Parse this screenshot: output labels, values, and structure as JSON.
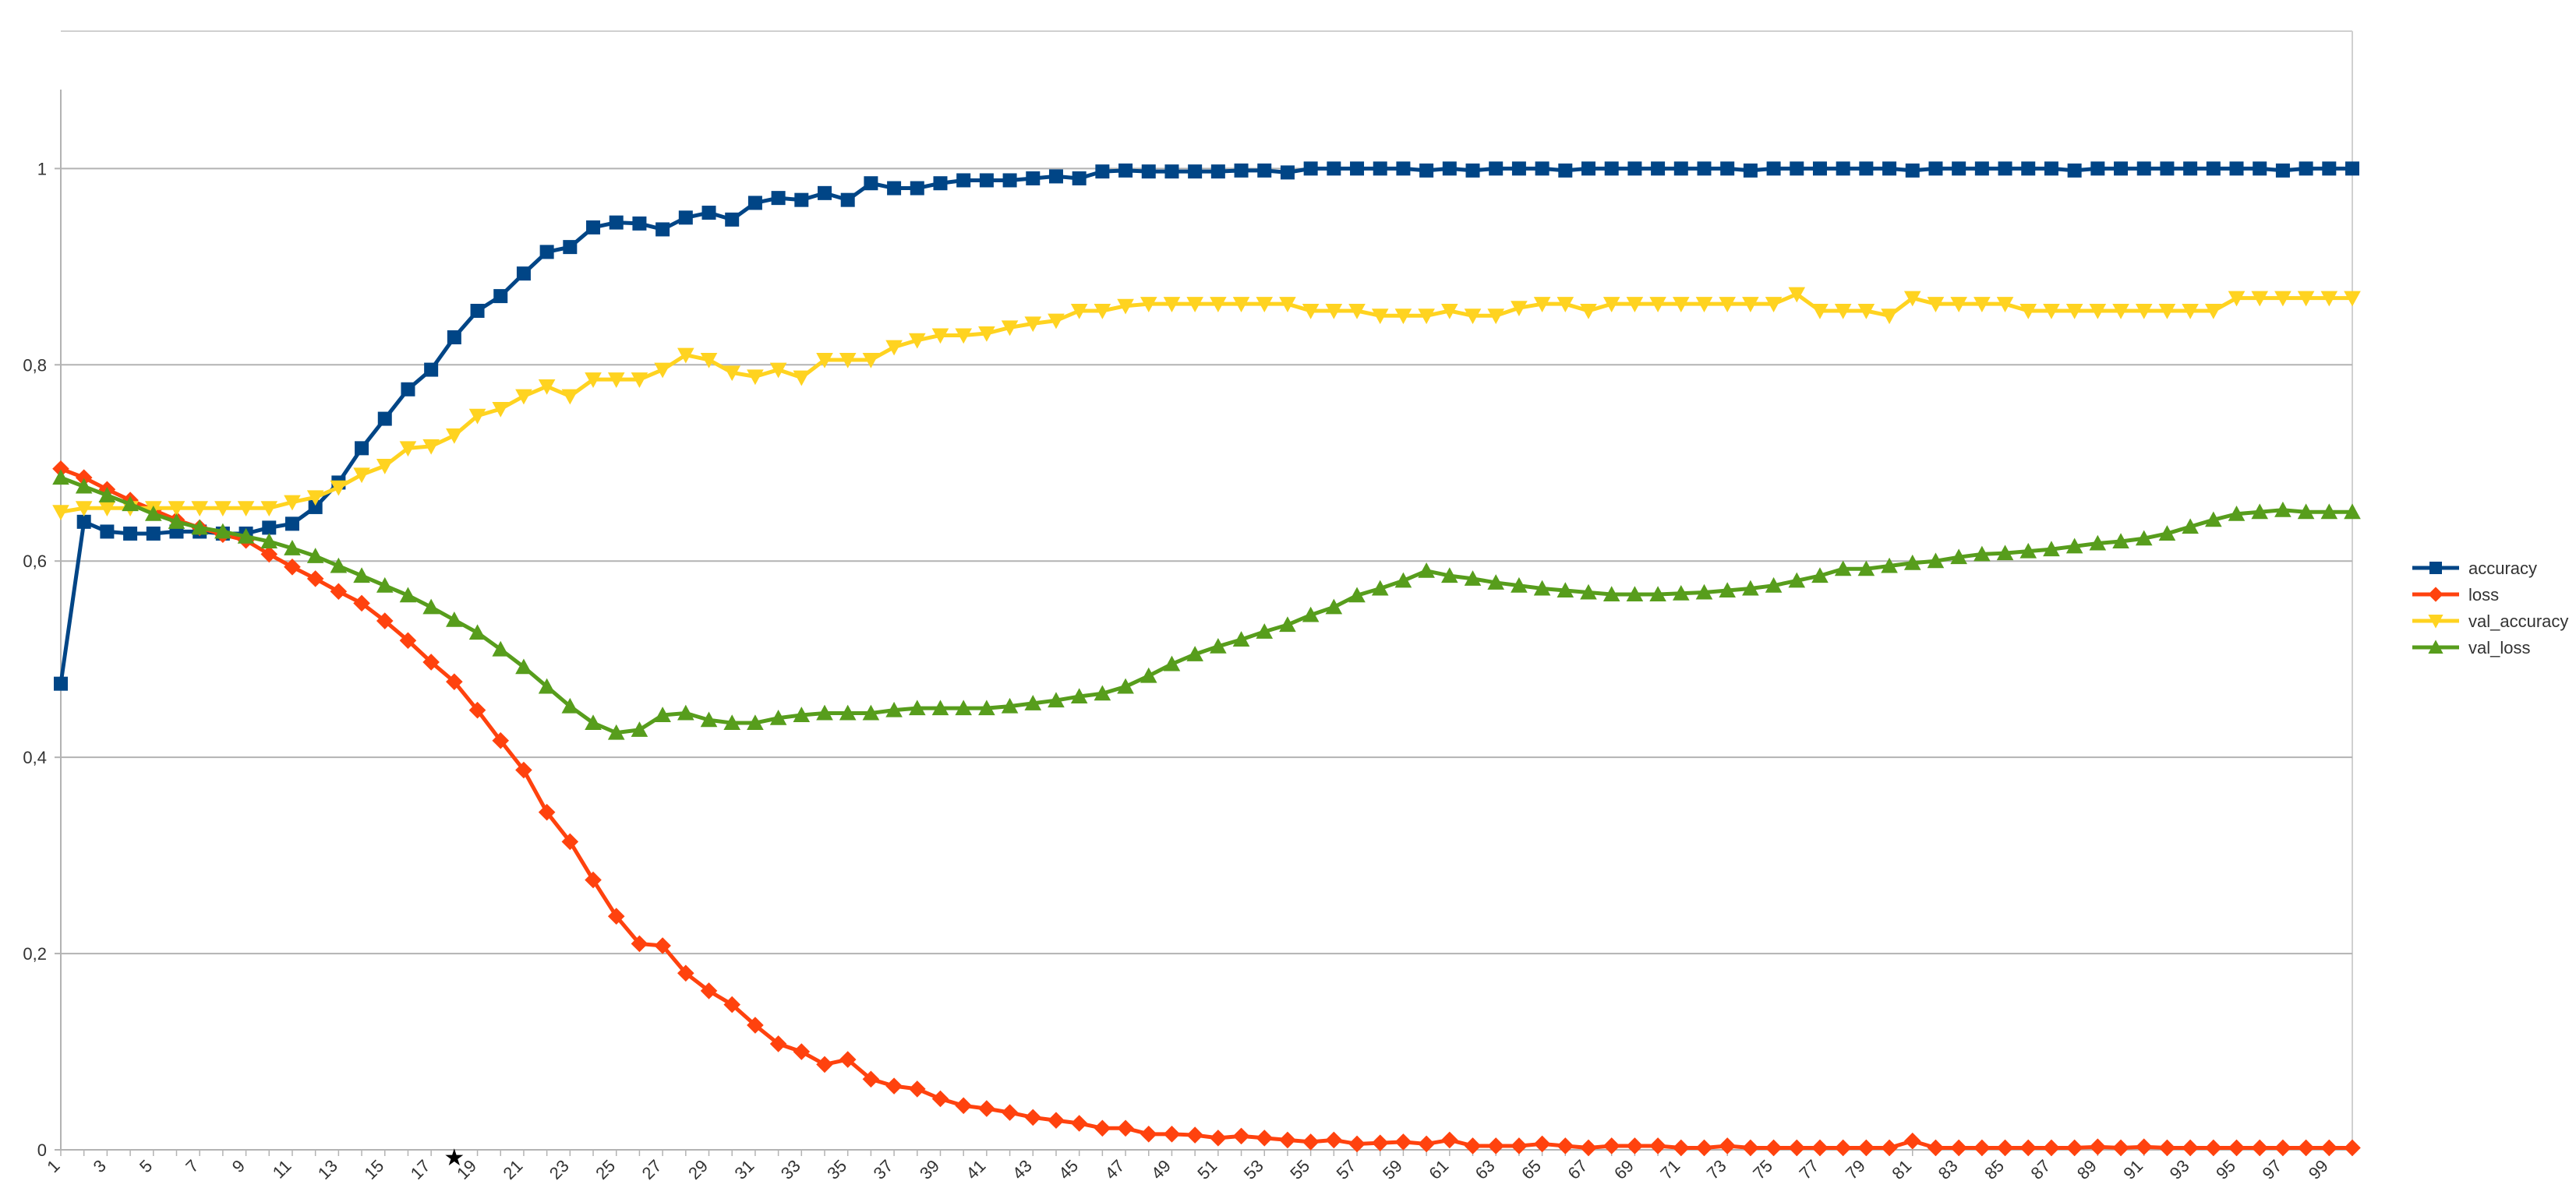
{
  "chart_data": {
    "type": "line",
    "title": "",
    "xlabel": "",
    "ylabel": "",
    "x_start": 1,
    "x_end": 100,
    "xtick_labels": [
      "1",
      "3",
      "5",
      "7",
      "9",
      "11",
      "13",
      "15",
      "17",
      "19",
      "21",
      "23",
      "25",
      "27",
      "29",
      "31",
      "33",
      "35",
      "37",
      "39",
      "41",
      "43",
      "45",
      "47",
      "49",
      "51",
      "53",
      "55",
      "57",
      "59",
      "61",
      "63",
      "65",
      "67",
      "69",
      "71",
      "73",
      "75",
      "77",
      "79",
      "81",
      "83",
      "85",
      "87",
      "89",
      "91",
      "93",
      "95",
      "97",
      "99"
    ],
    "ylim": [
      0,
      1.14
    ],
    "yticks": [
      0,
      0.2,
      0.4,
      0.6,
      0.8,
      1
    ],
    "ytick_labels": [
      "0",
      "0,2",
      "0,4",
      "0,6",
      "0,8",
      "1"
    ],
    "grid": true,
    "legend_position": "right",
    "marker_note": "★",
    "marker_note_x": 18,
    "series": [
      {
        "name": "accuracy",
        "color": "#004586",
        "marker": "square",
        "values": [
          0.475,
          0.64,
          0.63,
          0.628,
          0.628,
          0.63,
          0.63,
          0.628,
          0.628,
          0.634,
          0.638,
          0.655,
          0.68,
          0.715,
          0.745,
          0.775,
          0.795,
          0.828,
          0.855,
          0.87,
          0.893,
          0.915,
          0.92,
          0.94,
          0.945,
          0.944,
          0.938,
          0.95,
          0.955,
          0.948,
          0.965,
          0.97,
          0.968,
          0.975,
          0.968,
          0.985,
          0.98,
          0.98,
          0.985,
          0.988,
          0.988,
          0.988,
          0.99,
          0.992,
          0.99,
          0.997,
          0.998,
          0.997,
          0.997,
          0.997,
          0.997,
          0.998,
          0.998,
          0.996,
          1,
          1,
          1,
          1,
          1,
          0.998,
          1,
          0.998,
          1,
          1,
          1,
          0.998,
          1,
          1,
          1,
          1,
          1,
          1,
          1,
          0.998,
          1,
          1,
          1,
          1,
          1,
          1,
          0.998,
          1,
          1,
          1,
          1,
          1,
          1,
          0.998,
          1,
          1,
          1,
          1,
          1,
          1,
          1,
          1,
          0.998,
          1,
          1,
          1
        ]
      },
      {
        "name": "loss",
        "color": "#ff420e",
        "marker": "diamond",
        "values": [
          0.694,
          0.685,
          0.673,
          0.662,
          0.652,
          0.642,
          0.634,
          0.627,
          0.621,
          0.607,
          0.594,
          0.582,
          0.569,
          0.557,
          0.539,
          0.519,
          0.497,
          0.477,
          0.448,
          0.417,
          0.387,
          0.344,
          0.314,
          0.275,
          0.238,
          0.21,
          0.208,
          0.18,
          0.162,
          0.148,
          0.127,
          0.108,
          0.1,
          0.087,
          0.092,
          0.072,
          0.065,
          0.062,
          0.052,
          0.045,
          0.042,
          0.038,
          0.033,
          0.03,
          0.027,
          0.022,
          0.022,
          0.016,
          0.016,
          0.015,
          0.012,
          0.014,
          0.012,
          0.01,
          0.008,
          0.01,
          0.006,
          0.007,
          0.008,
          0.006,
          0.01,
          0.004,
          0.004,
          0.004,
          0.006,
          0.004,
          0.002,
          0.004,
          0.004,
          0.004,
          0.002,
          0.002,
          0.004,
          0.002,
          0.002,
          0.002,
          0.002,
          0.002,
          0.002,
          0.002,
          0.009,
          0.002,
          0.002,
          0.002,
          0.002,
          0.002,
          0.002,
          0.002,
          0.003,
          0.002,
          0.003,
          0.002,
          0.002,
          0.002,
          0.002,
          0.002,
          0.002,
          0.002,
          0.002,
          0.002
        ]
      },
      {
        "name": "val_accuracy",
        "color": "#ffd320",
        "marker": "triangle-down",
        "values": [
          0.65,
          0.654,
          0.654,
          0.654,
          0.654,
          0.654,
          0.654,
          0.654,
          0.654,
          0.654,
          0.66,
          0.665,
          0.675,
          0.688,
          0.697,
          0.715,
          0.717,
          0.728,
          0.748,
          0.755,
          0.768,
          0.778,
          0.768,
          0.785,
          0.785,
          0.785,
          0.795,
          0.81,
          0.805,
          0.792,
          0.788,
          0.795,
          0.787,
          0.805,
          0.805,
          0.805,
          0.818,
          0.825,
          0.83,
          0.83,
          0.832,
          0.838,
          0.842,
          0.845,
          0.855,
          0.855,
          0.86,
          0.862,
          0.862,
          0.862,
          0.862,
          0.862,
          0.862,
          0.862,
          0.855,
          0.855,
          0.855,
          0.85,
          0.85,
          0.85,
          0.855,
          0.85,
          0.85,
          0.858,
          0.862,
          0.862,
          0.855,
          0.862,
          0.862,
          0.862,
          0.862,
          0.862,
          0.862,
          0.862,
          0.862,
          0.872,
          0.855,
          0.855,
          0.855,
          0.85,
          0.868,
          0.862,
          0.862,
          0.862,
          0.862,
          0.855,
          0.855,
          0.855,
          0.855,
          0.855,
          0.855,
          0.855,
          0.855,
          0.855,
          0.868,
          0.868,
          0.868,
          0.868,
          0.868,
          0.868
        ]
      },
      {
        "name": "val_loss",
        "color": "#579d1c",
        "marker": "triangle-up",
        "values": [
          0.685,
          0.676,
          0.667,
          0.658,
          0.648,
          0.64,
          0.634,
          0.63,
          0.625,
          0.62,
          0.613,
          0.605,
          0.595,
          0.585,
          0.575,
          0.565,
          0.553,
          0.54,
          0.527,
          0.51,
          0.492,
          0.472,
          0.452,
          0.435,
          0.425,
          0.428,
          0.443,
          0.445,
          0.438,
          0.435,
          0.435,
          0.44,
          0.443,
          0.445,
          0.445,
          0.445,
          0.448,
          0.45,
          0.45,
          0.45,
          0.45,
          0.452,
          0.455,
          0.458,
          0.462,
          0.465,
          0.472,
          0.483,
          0.495,
          0.505,
          0.513,
          0.52,
          0.528,
          0.535,
          0.545,
          0.553,
          0.565,
          0.572,
          0.58,
          0.59,
          0.585,
          0.582,
          0.578,
          0.575,
          0.572,
          0.57,
          0.568,
          0.566,
          0.566,
          0.566,
          0.567,
          0.568,
          0.57,
          0.572,
          0.575,
          0.58,
          0.585,
          0.592,
          0.592,
          0.595,
          0.598,
          0.6,
          0.604,
          0.607,
          0.608,
          0.61,
          0.612,
          0.615,
          0.618,
          0.62,
          0.623,
          0.628,
          0.635,
          0.642,
          0.648,
          0.65,
          0.652,
          0.65,
          0.65,
          0.65
        ]
      }
    ]
  }
}
